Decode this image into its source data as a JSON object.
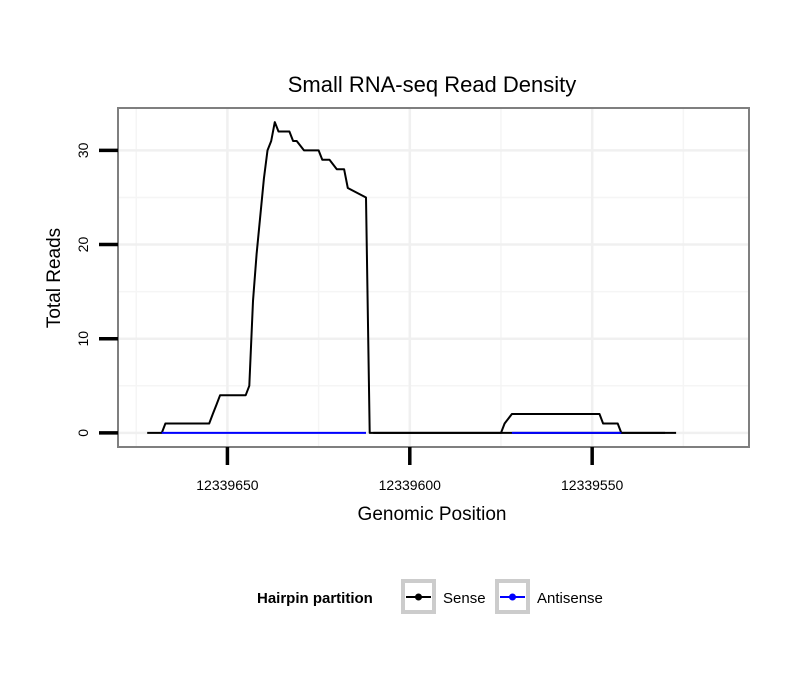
{
  "chart_data": {
    "type": "line",
    "title": "Small RNA-seq Read Density",
    "xlabel": "Genomic Position",
    "ylabel": "Total Reads",
    "x_reversed": true,
    "xlim": [
      12339680,
      12339507
    ],
    "ylim": [
      -1.5,
      34.5
    ],
    "x_ticks": [
      12339650,
      12339600,
      12339550
    ],
    "x_tick_labels": [
      "12339650",
      "12339600",
      "12339550"
    ],
    "y_ticks": [
      0,
      10,
      20,
      30
    ],
    "y_tick_labels": [
      "0",
      "10",
      "20",
      "30"
    ],
    "grid": true,
    "legend": {
      "title": "Hairpin partition",
      "position": "bottom",
      "entries": [
        "Sense",
        "Antisense"
      ]
    },
    "series": [
      {
        "name": "Sense",
        "color": "#000000",
        "x": [
          12339672,
          12339668,
          12339667,
          12339655,
          12339654,
          12339653,
          12339652,
          12339645,
          12339644,
          12339643,
          12339642,
          12339640,
          12339639,
          12339638,
          12339637,
          12339636,
          12339635,
          12339633,
          12339632,
          12339631,
          12339629,
          12339625,
          12339624,
          12339622,
          12339620,
          12339618,
          12339617,
          12339612,
          12339611,
          12339610,
          12339609,
          12339608,
          12339607,
          12339606,
          12339605,
          12339600,
          12339590,
          12339580,
          12339570,
          12339560,
          12339550,
          12339540,
          12339530,
          12339527
        ],
        "y": [
          0,
          0,
          1,
          1,
          2,
          3,
          4,
          4,
          5,
          14,
          19,
          27,
          30,
          31,
          33,
          32,
          32,
          32,
          31,
          31,
          30,
          30,
          29,
          29,
          28,
          28,
          26,
          25,
          0,
          0,
          0,
          0,
          0,
          0,
          0,
          0,
          0,
          0,
          0,
          0,
          0,
          0,
          0,
          0
        ]
      },
      {
        "name": "Sense",
        "color": "#000000",
        "x": [
          12339610,
          12339575,
          12339574,
          12339572,
          12339560,
          12339548,
          12339547,
          12339543,
          12339542,
          12339530
        ],
        "y": [
          0,
          0,
          1,
          2,
          2,
          2,
          1,
          1,
          0,
          0
        ]
      },
      {
        "name": "Antisense",
        "color": "#0000ff",
        "x": [
          12339668,
          12339612
        ],
        "y": [
          0,
          0
        ]
      },
      {
        "name": "Antisense",
        "color": "#0000ff",
        "x": [
          12339572,
          12339542
        ],
        "y": [
          0,
          0
        ]
      }
    ]
  }
}
